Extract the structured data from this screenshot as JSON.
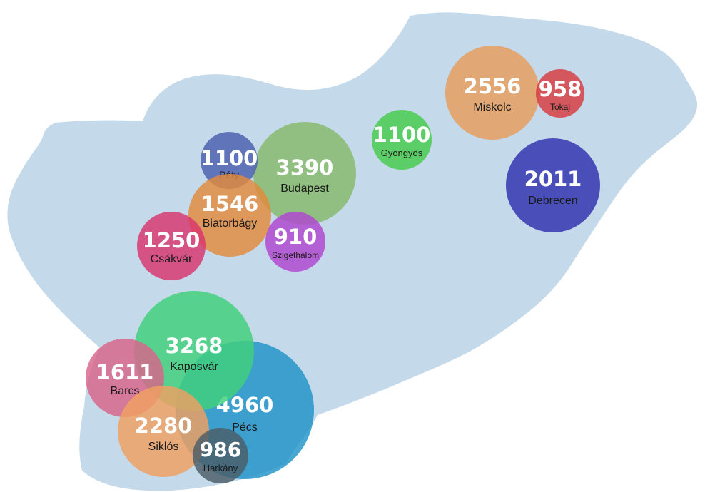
{
  "map": {
    "land_color": "#c4d9ea",
    "text_color": "#ffffff",
    "label_color": "#1a1a1a"
  },
  "bubbles": [
    {
      "city": "Pécs",
      "value": "4960",
      "color": "#1f93c8"
    },
    {
      "city": "Kaposvár",
      "value": "3268",
      "color": "#3fd17a"
    },
    {
      "city": "Barcs",
      "value": "1611",
      "color": "#d9648a"
    },
    {
      "city": "Siklós",
      "value": "2280",
      "color": "#f0a060"
    },
    {
      "city": "Harkány",
      "value": "986",
      "color": "#4a5d68"
    },
    {
      "city": "Budapest",
      "value": "3390",
      "color": "#86b96a"
    },
    {
      "city": "Páty",
      "value": "1100",
      "color": "#4a5fae"
    },
    {
      "city": "Biatorbágy",
      "value": "1546",
      "color": "#e38a3c"
    },
    {
      "city": "Csákvár",
      "value": "1250",
      "color": "#d9356e"
    },
    {
      "city": "Szigethalom",
      "value": "910",
      "color": "#b145d1"
    },
    {
      "city": "Gyöngyös",
      "value": "1100",
      "color": "#45cc4a"
    },
    {
      "city": "Miskolc",
      "value": "2556",
      "color": "#e89c5c"
    },
    {
      "city": "Tokaj",
      "value": "958",
      "color": "#d83a40"
    },
    {
      "city": "Debrecen",
      "value": "2011",
      "color": "#2e2fae"
    }
  ]
}
